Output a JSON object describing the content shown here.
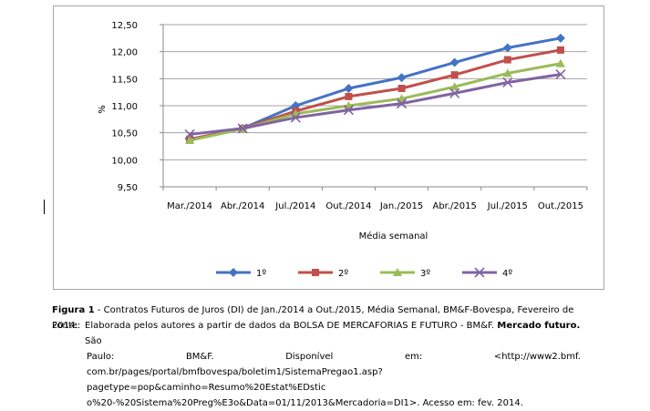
{
  "chart_data": {
    "type": "line",
    "categories": [
      "Mar./2014",
      "Abr./2014",
      "Jul./2014",
      "Out./2014",
      "Jan./2015",
      "Abr./2015",
      "Jul./2015",
      "Out./2015"
    ],
    "series": [
      {
        "name": "1º",
        "color": "#4472c4",
        "marker": "diamond",
        "values": [
          10.38,
          10.58,
          11.0,
          11.32,
          11.52,
          11.8,
          12.07,
          12.25
        ]
      },
      {
        "name": "2º",
        "color": "#c0504d",
        "marker": "square",
        "values": [
          10.38,
          10.58,
          10.9,
          11.17,
          11.32,
          11.57,
          11.85,
          12.03
        ]
      },
      {
        "name": "3º",
        "color": "#9bbb59",
        "marker": "triangle",
        "values": [
          10.36,
          10.57,
          10.85,
          11.0,
          11.13,
          11.35,
          11.6,
          11.78
        ]
      },
      {
        "name": "4º",
        "color": "#8064a2",
        "marker": "x",
        "values": [
          10.47,
          10.58,
          10.78,
          10.92,
          11.04,
          11.23,
          11.43,
          11.58
        ]
      }
    ],
    "ylim": [
      9.5,
      12.5
    ],
    "yticks": [
      "9,50",
      "10,00",
      "10,50",
      "11,00",
      "11,50",
      "12,00",
      "12,50"
    ],
    "ytick_values": [
      9.5,
      10.0,
      10.5,
      11.0,
      11.5,
      12.0,
      12.5
    ],
    "ylabel": "%",
    "xlabel": "Média semanal",
    "grid": "horizontal",
    "legend_position": "bottom"
  },
  "caption": {
    "label": "Figura 1",
    "text": " - Contratos Futuros de Juros (DI) de Jan./2014 a Out./2015, Média Semanal, BM&F-Bovespa, Fevereiro de 2014."
  },
  "source": {
    "key": "Fonte:",
    "line1": "Elaborada pelos autores a partir de dados da BOLSA DE MERCAFORIAS E FUTURO - BM&F.",
    "bold": "Mercado futuro.",
    "line1_end": "São",
    "line2_words": [
      "Paulo:",
      "BM&F.",
      "Disponível",
      "em:",
      "<http://www2.bmf."
    ],
    "line3": "com.br/pages/portal/bmfbovespa/boletim1/SistemaPregao1.asp?pagetype=pop&caminho=Resumo%20Estat%EDstic",
    "line4": "o%20-%20Sistema%20Preg%E3o&Data=01/11/2013&Mercadoria=DI1>. Acesso em: fev. 2014."
  }
}
